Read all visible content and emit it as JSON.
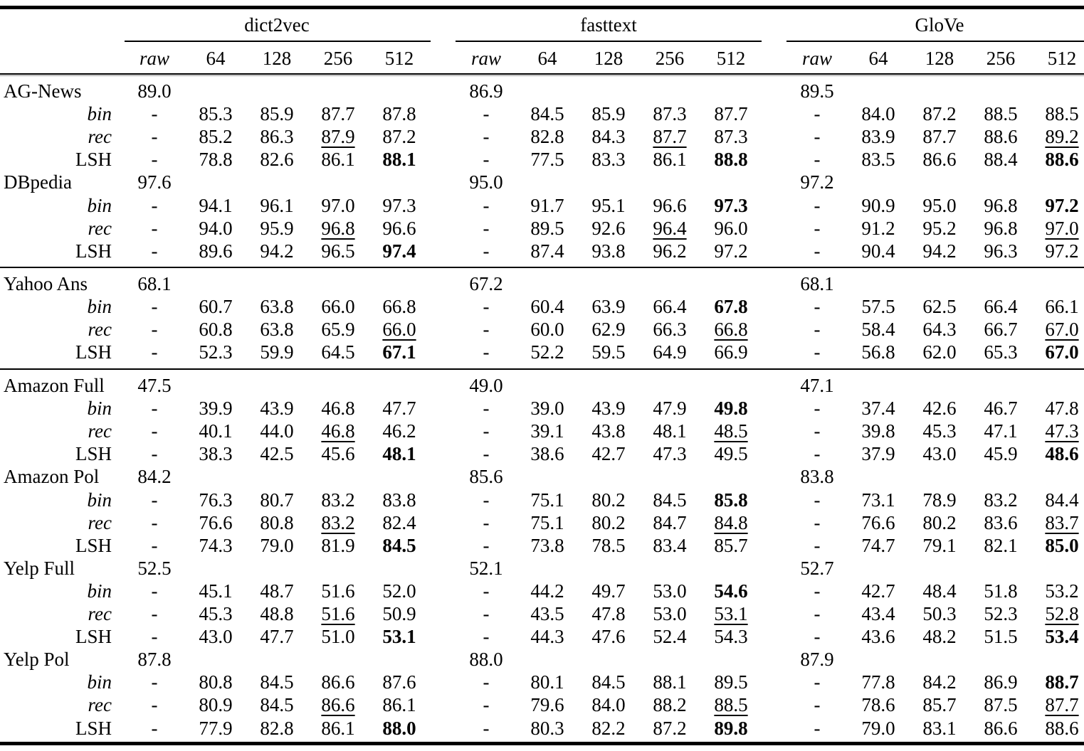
{
  "table": {
    "groups": [
      {
        "name": "dict2vec"
      },
      {
        "name": "fasttext"
      },
      {
        "name": "GloVe"
      }
    ],
    "sub_headers": [
      "raw",
      "64",
      "128",
      "256",
      "512"
    ],
    "datasets": [
      {
        "name": "AG-News",
        "raw": [
          "89.0",
          "86.9",
          "89.5"
        ],
        "rows": [
          {
            "method": "bin",
            "values": [
              [
                "-",
                "85.3",
                "85.9",
                "87.7",
                "87.8"
              ],
              [
                "-",
                "84.5",
                "85.9",
                "87.3",
                "87.7"
              ],
              [
                "-",
                "84.0",
                "87.2",
                "88.5",
                "88.5"
              ]
            ]
          },
          {
            "method": "rec",
            "values": [
              [
                "-",
                "85.2",
                "86.3",
                "87.9",
                "87.2"
              ],
              [
                "-",
                "82.8",
                "84.3",
                "87.7",
                "87.3"
              ],
              [
                "-",
                "83.9",
                "87.7",
                "88.6",
                "89.2"
              ]
            ]
          },
          {
            "method": "LSH",
            "values": [
              [
                "-",
                "78.8",
                "82.6",
                "86.1",
                "88.1"
              ],
              [
                "-",
                "77.5",
                "83.3",
                "86.1",
                "88.8"
              ],
              [
                "-",
                "83.5",
                "86.6",
                "88.4",
                "88.6"
              ]
            ]
          }
        ]
      },
      {
        "name": "DBpedia",
        "raw": [
          "97.6",
          "95.0",
          "97.2"
        ],
        "rows": [
          {
            "method": "bin",
            "values": [
              [
                "-",
                "94.1",
                "96.1",
                "97.0",
                "97.3"
              ],
              [
                "-",
                "91.7",
                "95.1",
                "96.6",
                "97.3"
              ],
              [
                "-",
                "90.9",
                "95.0",
                "96.8",
                "97.2"
              ]
            ]
          },
          {
            "method": "rec",
            "values": [
              [
                "-",
                "94.0",
                "95.9",
                "96.8",
                "96.6"
              ],
              [
                "-",
                "89.5",
                "92.6",
                "96.4",
                "96.0"
              ],
              [
                "-",
                "91.2",
                "95.2",
                "96.8",
                "97.0"
              ]
            ]
          },
          {
            "method": "LSH",
            "values": [
              [
                "-",
                "89.6",
                "94.2",
                "96.5",
                "97.4"
              ],
              [
                "-",
                "87.4",
                "93.8",
                "96.2",
                "97.2"
              ],
              [
                "-",
                "90.4",
                "94.2",
                "96.3",
                "97.2"
              ]
            ]
          }
        ]
      },
      {
        "name": "Yahoo Ans",
        "raw": [
          "68.1",
          "67.2",
          "68.1"
        ],
        "rows": [
          {
            "method": "bin",
            "values": [
              [
                "-",
                "60.7",
                "63.8",
                "66.0",
                "66.8"
              ],
              [
                "-",
                "60.4",
                "63.9",
                "66.4",
                "67.8"
              ],
              [
                "-",
                "57.5",
                "62.5",
                "66.4",
                "66.1"
              ]
            ]
          },
          {
            "method": "rec",
            "values": [
              [
                "-",
                "60.8",
                "63.8",
                "65.9",
                "66.0"
              ],
              [
                "-",
                "60.0",
                "62.9",
                "66.3",
                "66.8"
              ],
              [
                "-",
                "58.4",
                "64.3",
                "66.7",
                "67.0"
              ]
            ]
          },
          {
            "method": "LSH",
            "values": [
              [
                "-",
                "52.3",
                "59.9",
                "64.5",
                "67.1"
              ],
              [
                "-",
                "52.2",
                "59.5",
                "64.9",
                "66.9"
              ],
              [
                "-",
                "56.8",
                "62.0",
                "65.3",
                "67.0"
              ]
            ]
          }
        ]
      },
      {
        "name": "Amazon Full",
        "raw": [
          "47.5",
          "49.0",
          "47.1"
        ],
        "rows": [
          {
            "method": "bin",
            "values": [
              [
                "-",
                "39.9",
                "43.9",
                "46.8",
                "47.7"
              ],
              [
                "-",
                "39.0",
                "43.9",
                "47.9",
                "49.8"
              ],
              [
                "-",
                "37.4",
                "42.6",
                "46.7",
                "47.8"
              ]
            ]
          },
          {
            "method": "rec",
            "values": [
              [
                "-",
                "40.1",
                "44.0",
                "46.8",
                "46.2"
              ],
              [
                "-",
                "39.1",
                "43.8",
                "48.1",
                "48.5"
              ],
              [
                "-",
                "39.8",
                "45.3",
                "47.1",
                "47.3"
              ]
            ]
          },
          {
            "method": "LSH",
            "values": [
              [
                "-",
                "38.3",
                "42.5",
                "45.6",
                "48.1"
              ],
              [
                "-",
                "38.6",
                "42.7",
                "47.3",
                "49.5"
              ],
              [
                "-",
                "37.9",
                "43.0",
                "45.9",
                "48.6"
              ]
            ]
          }
        ]
      },
      {
        "name": "Amazon Pol",
        "raw": [
          "84.2",
          "85.6",
          "83.8"
        ],
        "rows": [
          {
            "method": "bin",
            "values": [
              [
                "-",
                "76.3",
                "80.7",
                "83.2",
                "83.8"
              ],
              [
                "-",
                "75.1",
                "80.2",
                "84.5",
                "85.8"
              ],
              [
                "-",
                "73.1",
                "78.9",
                "83.2",
                "84.4"
              ]
            ]
          },
          {
            "method": "rec",
            "values": [
              [
                "-",
                "76.6",
                "80.8",
                "83.2",
                "82.4"
              ],
              [
                "-",
                "75.1",
                "80.2",
                "84.7",
                "84.8"
              ],
              [
                "-",
                "76.6",
                "80.2",
                "83.6",
                "83.7"
              ]
            ]
          },
          {
            "method": "LSH",
            "values": [
              [
                "-",
                "74.3",
                "79.0",
                "81.9",
                "84.5"
              ],
              [
                "-",
                "73.8",
                "78.5",
                "83.4",
                "85.7"
              ],
              [
                "-",
                "74.7",
                "79.1",
                "82.1",
                "85.0"
              ]
            ]
          }
        ]
      },
      {
        "name": "Yelp Full",
        "raw": [
          "52.5",
          "52.1",
          "52.7"
        ],
        "rows": [
          {
            "method": "bin",
            "values": [
              [
                "-",
                "45.1",
                "48.7",
                "51.6",
                "52.0"
              ],
              [
                "-",
                "44.2",
                "49.7",
                "53.0",
                "54.6"
              ],
              [
                "-",
                "42.7",
                "48.4",
                "51.8",
                "53.2"
              ]
            ]
          },
          {
            "method": "rec",
            "values": [
              [
                "-",
                "45.3",
                "48.8",
                "51.6",
                "50.9"
              ],
              [
                "-",
                "43.5",
                "47.8",
                "53.0",
                "53.1"
              ],
              [
                "-",
                "43.4",
                "50.3",
                "52.3",
                "52.8"
              ]
            ]
          },
          {
            "method": "LSH",
            "values": [
              [
                "-",
                "43.0",
                "47.7",
                "51.0",
                "53.1"
              ],
              [
                "-",
                "44.3",
                "47.6",
                "52.4",
                "54.3"
              ],
              [
                "-",
                "43.6",
                "48.2",
                "51.5",
                "53.4"
              ]
            ]
          }
        ]
      },
      {
        "name": "Yelp Pol",
        "raw": [
          "87.8",
          "88.0",
          "87.9"
        ],
        "rows": [
          {
            "method": "bin",
            "values": [
              [
                "-",
                "80.8",
                "84.5",
                "86.6",
                "87.6"
              ],
              [
                "-",
                "80.1",
                "84.5",
                "88.1",
                "89.5"
              ],
              [
                "-",
                "77.8",
                "84.2",
                "86.9",
                "88.7"
              ]
            ]
          },
          {
            "method": "rec",
            "values": [
              [
                "-",
                "80.9",
                "84.5",
                "86.6",
                "86.1"
              ],
              [
                "-",
                "79.6",
                "84.0",
                "88.2",
                "88.5"
              ],
              [
                "-",
                "78.6",
                "85.7",
                "87.5",
                "87.7"
              ]
            ]
          },
          {
            "method": "LSH",
            "values": [
              [
                "-",
                "77.9",
                "82.8",
                "86.1",
                "88.0"
              ],
              [
                "-",
                "80.3",
                "82.2",
                "87.2",
                "89.8"
              ],
              [
                "-",
                "79.0",
                "83.1",
                "86.6",
                "88.6"
              ]
            ]
          }
        ]
      }
    ],
    "bold_cells": [
      "0.2.0.4",
      "0.2.1.4",
      "0.2.2.4",
      "1.2.0.4",
      "1.0.1.4",
      "1.0.2.4",
      "2.2.0.4",
      "2.0.1.4",
      "2.2.2.4",
      "3.2.0.4",
      "3.0.1.4",
      "3.2.2.4",
      "4.2.0.4",
      "4.0.1.4",
      "4.2.2.4",
      "5.2.0.4",
      "5.0.1.4",
      "5.2.2.4",
      "6.2.0.4",
      "6.2.1.4",
      "6.0.2.4"
    ],
    "underlined_cells": [
      "0.1.0.3",
      "0.1.1.3",
      "0.1.2.4",
      "1.1.0.3",
      "1.1.1.3",
      "1.1.2.4",
      "2.1.0.4",
      "2.1.1.4",
      "2.1.2.4",
      "3.1.0.3",
      "3.1.1.4",
      "3.1.2.4",
      "4.1.0.3",
      "4.1.1.4",
      "4.1.2.4",
      "5.1.0.3",
      "5.1.1.4",
      "5.1.2.4",
      "6.1.0.3",
      "6.1.1.4",
      "6.1.2.4"
    ]
  }
}
